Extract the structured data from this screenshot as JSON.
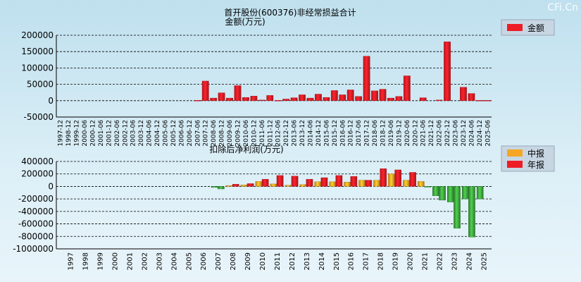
{
  "watermark": "CFi.Cn",
  "chart_data": [
    {
      "type": "bar",
      "title": "首开股份(600376)非经常损益合计",
      "subtitle": "金额(万元)",
      "legend": [
        {
          "label": "金额",
          "color": "#ee1c25"
        }
      ],
      "ylim": [
        -50000,
        200000
      ],
      "yticks": [
        200000,
        150000,
        100000,
        50000,
        0,
        -50000
      ],
      "categories": [
        "1997-12",
        "1998-12",
        "1999-12",
        "2000-06",
        "2000-12",
        "2001-06",
        "2001-12",
        "2002-06",
        "2002-12",
        "2003-06",
        "2003-12",
        "2004-06",
        "2004-12",
        "2005-06",
        "2005-12",
        "2006-06",
        "2006-12",
        "2007-06",
        "2007-12",
        "2008-06",
        "2008-12",
        "2009-06",
        "2009-12",
        "2010-06",
        "2010-12",
        "2011-06",
        "2011-12",
        "2012-06",
        "2012-12",
        "2013-06",
        "2013-12",
        "2014-06",
        "2014-12",
        "2015-06",
        "2015-12",
        "2016-06",
        "2016-12",
        "2017-06",
        "2017-12",
        "2018-06",
        "2018-12",
        "2019-06",
        "2019-12",
        "2020-06",
        "2020-12",
        "2021-06",
        "2021-12",
        "2022-06",
        "2022-12",
        "2023-06",
        "2023-12",
        "2024-06",
        "2024-12",
        "2025-06"
      ],
      "values": [
        0,
        0,
        0,
        0,
        0,
        0,
        0,
        0,
        0,
        0,
        0,
        0,
        0,
        0,
        0,
        0,
        0,
        1000,
        60000,
        8000,
        24000,
        8000,
        46000,
        10000,
        14000,
        2000,
        16000,
        1000,
        5000,
        9000,
        18000,
        8000,
        20000,
        10000,
        31000,
        18000,
        33000,
        13000,
        136000,
        30000,
        35000,
        8000,
        13000,
        76000,
        0,
        9000,
        0,
        2000,
        180000,
        0,
        41000,
        22000,
        1000,
        1000
      ]
    },
    {
      "type": "bar",
      "title": "扣除后净利润(万元)",
      "legend": [
        {
          "label": "中报",
          "color": "#f5a623"
        },
        {
          "label": "年报",
          "color": "#ee1c25"
        }
      ],
      "ylim": [
        -1000000,
        400000
      ],
      "yticks": [
        400000,
        200000,
        0,
        -200000,
        -400000,
        -600000,
        -800000,
        -1000000
      ],
      "years": [
        "1997",
        "1998",
        "1999",
        "2000",
        "2001",
        "2002",
        "2003",
        "2004",
        "2005",
        "2006",
        "2007",
        "2008",
        "2009",
        "2010",
        "2011",
        "2012",
        "2013",
        "2014",
        "2015",
        "2016",
        "2017",
        "2018",
        "2019",
        "2020",
        "2021",
        "2022",
        "2023",
        "2024",
        "2025"
      ],
      "series": [
        {
          "name": "中报",
          "values": [
            0,
            0,
            0,
            0,
            0,
            0,
            0,
            0,
            0,
            0,
            -15000,
            15000,
            25000,
            80000,
            40000,
            20000,
            30000,
            75000,
            75000,
            70000,
            100000,
            100000,
            200000,
            100000,
            80000,
            -150000,
            -250000,
            -200000,
            -200000
          ]
        },
        {
          "name": "年报",
          "values": [
            0,
            0,
            0,
            0,
            0,
            0,
            0,
            0,
            0,
            0,
            -40000,
            35000,
            45000,
            115000,
            175000,
            165000,
            115000,
            140000,
            175000,
            160000,
            100000,
            285000,
            265000,
            225000,
            -10000,
            -220000,
            -670000,
            -810000,
            null
          ]
        }
      ]
    }
  ]
}
